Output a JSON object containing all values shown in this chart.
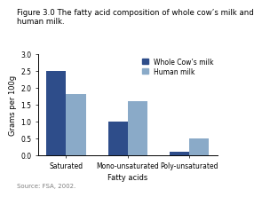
{
  "title_line1": "Figure 3.0 The fatty acid composition of whole cow’s milk and",
  "title_line2": "human milk.",
  "categories": [
    "Saturated",
    "Mono-unsaturated",
    "Poly-unsaturated"
  ],
  "cow_values": [
    2.5,
    1.0,
    0.1
  ],
  "human_values": [
    1.8,
    1.6,
    0.5
  ],
  "cow_color": "#2E4D8A",
  "human_color": "#8AAAC8",
  "ylabel": "Grams per 100g",
  "xlabel": "Fatty acids",
  "ylim": [
    0,
    3
  ],
  "yticks": [
    0,
    0.5,
    1.0,
    1.5,
    2.0,
    2.5,
    3.0
  ],
  "legend_labels": [
    "Whole Cow’s milk",
    "Human milk"
  ],
  "source": "Source: FSA, 2002.",
  "title_fontsize": 6.2,
  "axis_fontsize": 6.0,
  "tick_fontsize": 5.5,
  "legend_fontsize": 5.5,
  "source_fontsize": 5.0
}
